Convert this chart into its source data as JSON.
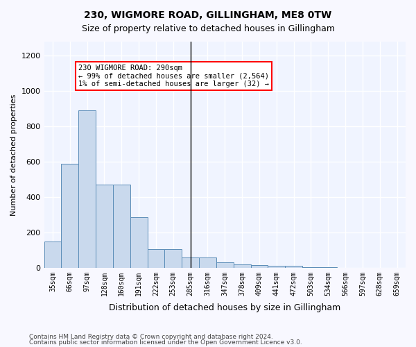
{
  "title1": "230, WIGMORE ROAD, GILLINGHAM, ME8 0TW",
  "title2": "Size of property relative to detached houses in Gillingham",
  "xlabel": "Distribution of detached houses by size in Gillingham",
  "ylabel": "Number of detached properties",
  "bar_color": "#c9d9ed",
  "bar_edge_color": "#5b8db8",
  "background_color": "#f0f4ff",
  "grid_color": "#ffffff",
  "annotation_text": "230 WIGMORE ROAD: 290sqm\n← 99% of detached houses are smaller (2,564)\n1% of semi-detached houses are larger (32) →",
  "vline_x": 8,
  "categories": [
    "35sqm",
    "66sqm",
    "97sqm",
    "128sqm",
    "160sqm",
    "191sqm",
    "222sqm",
    "253sqm",
    "285sqm",
    "316sqm",
    "347sqm",
    "378sqm",
    "409sqm",
    "441sqm",
    "472sqm",
    "503sqm",
    "534sqm",
    "566sqm",
    "597sqm",
    "628sqm",
    "659sqm"
  ],
  "values": [
    150,
    590,
    890,
    470,
    470,
    285,
    105,
    105,
    60,
    60,
    30,
    20,
    15,
    10,
    10,
    5,
    2,
    1,
    0,
    0,
    0
  ],
  "ylim": [
    0,
    1280
  ],
  "yticks": [
    0,
    200,
    400,
    600,
    800,
    1000,
    1200
  ],
  "footer1": "Contains HM Land Registry data © Crown copyright and database right 2024.",
  "footer2": "Contains public sector information licensed under the Open Government Licence v3.0."
}
